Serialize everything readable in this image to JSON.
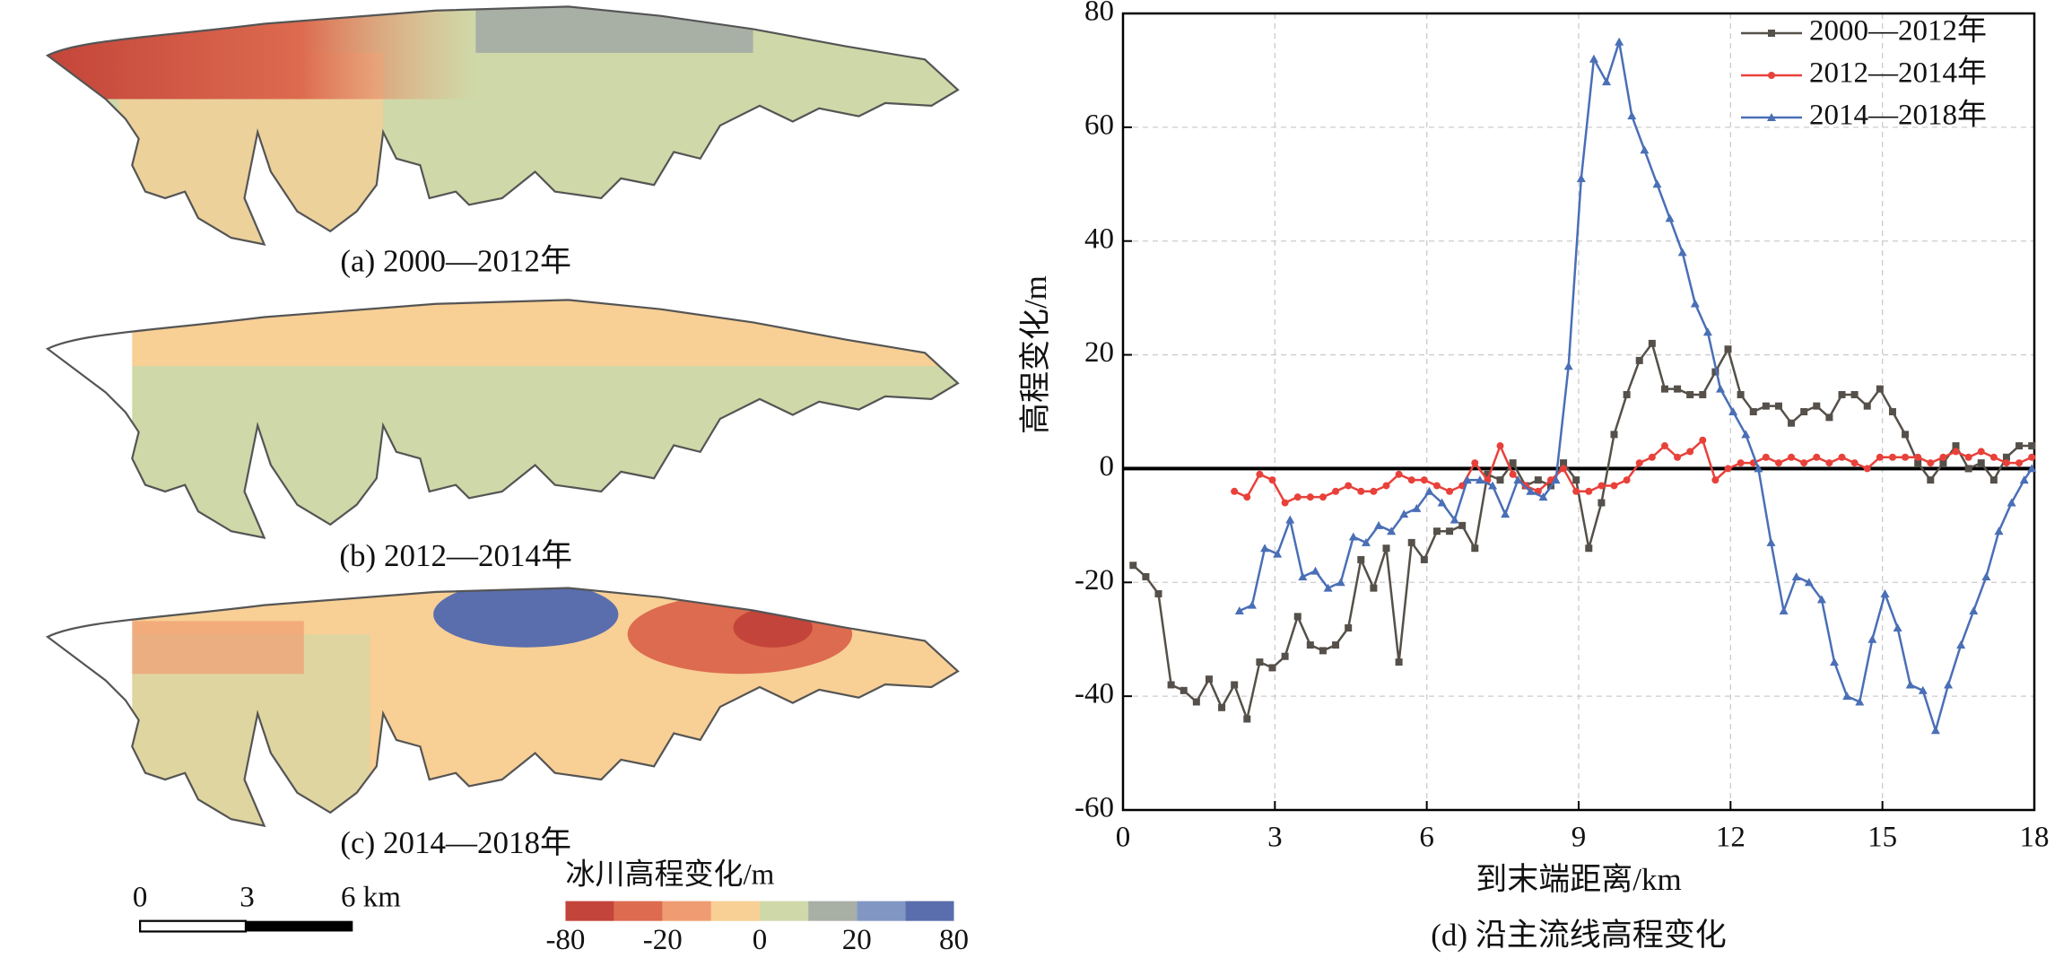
{
  "maps": {
    "panels": [
      {
        "caption": "(a) 2000—2012年"
      },
      {
        "caption": "(b) 2012—2014年"
      },
      {
        "caption": "(c) 2014—2018年"
      }
    ],
    "scale_bar": {
      "labels": [
        "0",
        "3",
        "6 km"
      ]
    },
    "legend": {
      "title": "冰川高程变化/m",
      "colors": [
        "#c3443a",
        "#dd6b4f",
        "#ef9c72",
        "#f8cf95",
        "#cfd8a8",
        "#a8b0a6",
        "#8196c2",
        "#5a6ead"
      ],
      "ticks": [
        -80,
        -20,
        0,
        20,
        80
      ]
    }
  },
  "chart_data": {
    "type": "line",
    "caption": "(d) 沿主流线高程变化",
    "xlabel": "到末端距离/km",
    "ylabel": "高程变化/m",
    "xlim": [
      0,
      18
    ],
    "xticks": [
      0,
      3,
      6,
      9,
      12,
      15,
      18
    ],
    "ylim": [
      -60,
      80
    ],
    "yticks": [
      -60,
      -40,
      -20,
      0,
      20,
      40,
      60,
      80
    ],
    "grid": true,
    "zero_line": true,
    "legend": "upper right",
    "series": [
      {
        "name": "2000—2012年",
        "color": "#555049",
        "marker": "square",
        "x": [
          0.2,
          0.45,
          0.7,
          0.95,
          1.2,
          1.45,
          1.7,
          1.95,
          2.2,
          2.45,
          2.7,
          2.95,
          3.2,
          3.45,
          3.7,
          3.95,
          4.2,
          4.45,
          4.7,
          4.95,
          5.2,
          5.45,
          5.7,
          5.95,
          6.2,
          6.45,
          6.7,
          6.95,
          7.2,
          7.45,
          7.7,
          7.95,
          8.2,
          8.45,
          8.7,
          8.95,
          9.2,
          9.45,
          9.7,
          9.95,
          10.2,
          10.45,
          10.7,
          10.95,
          11.2,
          11.45,
          11.7,
          11.95,
          12.2,
          12.45,
          12.7,
          12.95,
          13.2,
          13.45,
          13.7,
          13.95,
          14.2,
          14.45,
          14.7,
          14.95,
          15.2,
          15.45,
          15.7,
          15.95,
          16.2,
          16.45,
          16.7,
          16.95,
          17.2,
          17.45,
          17.7,
          17.95
        ],
        "values": [
          -17,
          -19,
          -22,
          -38,
          -39,
          -41,
          -37,
          -42,
          -38,
          -44,
          -34,
          -35,
          -33,
          -26,
          -31,
          -32,
          -31,
          -28,
          -16,
          -21,
          -14,
          -34,
          -13,
          -16,
          -11,
          -11,
          -10,
          -14,
          -1,
          -2,
          1,
          -3,
          -2,
          -3,
          1,
          -2,
          -14,
          -6,
          6,
          13,
          19,
          22,
          14,
          14,
          13,
          13,
          17,
          21,
          13,
          10,
          11,
          11,
          8,
          10,
          11,
          9,
          13,
          13,
          11,
          14,
          10,
          6,
          1,
          -2,
          1,
          4,
          0,
          1,
          -2,
          2,
          4,
          4
        ]
      },
      {
        "name": "2012—2014年",
        "color": "#e8413a",
        "marker": "circle",
        "x": [
          2.2,
          2.45,
          2.7,
          2.95,
          3.2,
          3.45,
          3.7,
          3.95,
          4.2,
          4.45,
          4.7,
          4.95,
          5.2,
          5.45,
          5.7,
          5.95,
          6.2,
          6.45,
          6.7,
          6.95,
          7.2,
          7.45,
          7.7,
          7.95,
          8.2,
          8.45,
          8.7,
          8.95,
          9.2,
          9.45,
          9.7,
          9.95,
          10.2,
          10.45,
          10.7,
          10.95,
          11.2,
          11.45,
          11.7,
          11.95,
          12.2,
          12.45,
          12.7,
          12.95,
          13.2,
          13.45,
          13.7,
          13.95,
          14.2,
          14.45,
          14.7,
          14.95,
          15.2,
          15.45,
          15.7,
          15.95,
          16.2,
          16.45,
          16.7,
          16.95,
          17.2,
          17.45,
          17.7,
          17.95
        ],
        "values": [
          -4,
          -5,
          -1,
          -2,
          -6,
          -5,
          -5,
          -5,
          -4,
          -3,
          -4,
          -4,
          -3,
          -1,
          -2,
          -2,
          -3,
          -4,
          -3,
          1,
          -2,
          4,
          -1,
          -3,
          -4,
          -2,
          0,
          -4,
          -4,
          -3,
          -3,
          -2,
          1,
          2,
          4,
          2,
          3,
          5,
          -2,
          0,
          1,
          1,
          2,
          1,
          2,
          1,
          2,
          1,
          2,
          1,
          0,
          2,
          2,
          2,
          2,
          1,
          2,
          3,
          2,
          3,
          2,
          1,
          1,
          2
        ]
      },
      {
        "name": "2014—2018年",
        "color": "#4a6fb6",
        "marker": "triangle",
        "x": [
          2.3,
          2.55,
          2.8,
          3.05,
          3.3,
          3.55,
          3.8,
          4.05,
          4.3,
          4.55,
          4.8,
          5.05,
          5.3,
          5.55,
          5.8,
          6.05,
          6.3,
          6.55,
          6.8,
          7.05,
          7.3,
          7.55,
          7.8,
          8.05,
          8.3,
          8.55,
          8.8,
          9.05,
          9.3,
          9.55,
          9.8,
          10.05,
          10.3,
          10.55,
          10.8,
          11.05,
          11.3,
          11.55,
          11.8,
          12.05,
          12.3,
          12.55,
          12.8,
          13.05,
          13.3,
          13.55,
          13.8,
          14.05,
          14.3,
          14.55,
          14.8,
          15.05,
          15.3,
          15.55,
          15.8,
          16.05,
          16.3,
          16.55,
          16.8,
          17.05,
          17.3,
          17.55,
          17.8,
          17.95
        ],
        "values": [
          -25,
          -24,
          -14,
          -15,
          -9,
          -19,
          -18,
          -21,
          -20,
          -12,
          -13,
          -10,
          -11,
          -8,
          -7,
          -4,
          -6,
          -9,
          -2,
          -2,
          -3,
          -8,
          -2,
          -4,
          -5,
          -2,
          18,
          51,
          72,
          68,
          75,
          62,
          56,
          50,
          44,
          38,
          29,
          24,
          14,
          10,
          6,
          0,
          -13,
          -25,
          -19,
          -20,
          -23,
          -34,
          -40,
          -41,
          -30,
          -22,
          -28,
          -38,
          -39,
          -46,
          -38,
          -31,
          -25,
          -19,
          -11,
          -6,
          -2,
          0
        ]
      }
    ]
  }
}
